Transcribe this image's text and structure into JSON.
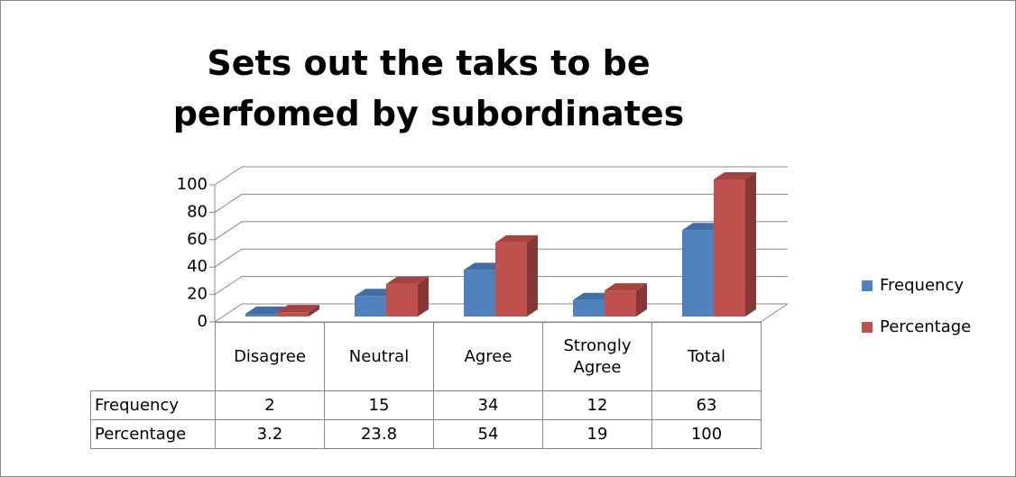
{
  "chart_data": {
    "type": "bar3d",
    "title": "Sets out the taks to be perfomed by subordinates",
    "categories": [
      "Disagree",
      "Neutral",
      "Agree",
      "Strongly Agree",
      "Total"
    ],
    "series": [
      {
        "name": "Frequency",
        "color": "#4f81bd",
        "values": [
          2,
          15,
          34,
          12,
          63
        ]
      },
      {
        "name": "Percentage",
        "color": "#c0504d",
        "values": [
          3.2,
          23.8,
          54,
          19,
          100
        ]
      }
    ],
    "ylim": [
      0,
      100
    ],
    "yticks": [
      0,
      20,
      40,
      60,
      80,
      100
    ],
    "grid": true,
    "legend": "right",
    "data_table": true
  }
}
